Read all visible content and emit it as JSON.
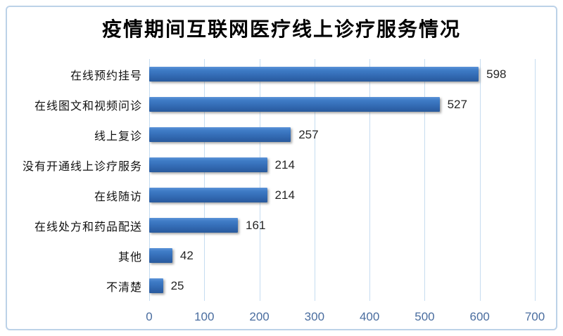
{
  "chart_data": {
    "type": "bar",
    "orientation": "horizontal",
    "title": "疫情期间互联网医疗线上诊疗服务情况",
    "categories": [
      "在线预约挂号",
      "在线图文和视频问诊",
      "线上复诊",
      "没有开通线上诊疗服务",
      "在线随访",
      "在线处方和药品配送",
      "其他",
      "不清楚"
    ],
    "values": [
      598,
      527,
      257,
      214,
      214,
      161,
      42,
      25
    ],
    "data_labels_shown": true,
    "xlabel": "",
    "ylabel": "",
    "xlim": [
      0,
      700
    ],
    "x_ticks": [
      0,
      100,
      200,
      300,
      400,
      500,
      600,
      700
    ],
    "grid": true,
    "legend_position": "none",
    "colors": {
      "bar_top": "#5b93d8",
      "bar_bottom": "#2a5b9d",
      "gridline": "#c6dcf0",
      "frame_border": "#bcd2e8",
      "axis_tick_label": "#4a6d9f",
      "value_label": "#262626",
      "title": "#000000",
      "background": "#ffffff"
    }
  }
}
